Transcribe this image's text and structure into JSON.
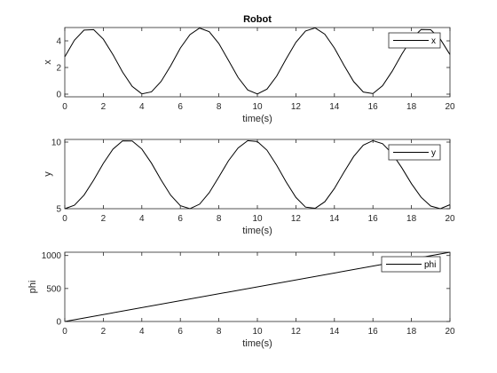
{
  "chart_data": [
    {
      "type": "line",
      "title": "Robot",
      "xlabel": "time(s)",
      "ylabel": "x",
      "xlim": [
        0,
        20
      ],
      "ylim": [
        -0.2,
        5
      ],
      "xticks": [
        0,
        2,
        4,
        6,
        8,
        10,
        12,
        14,
        16,
        18,
        20
      ],
      "yticks": [
        0,
        2,
        4
      ],
      "legend_position": "top-right",
      "grid": false,
      "series": [
        {
          "name": "x",
          "color": "#000000",
          "x": [
            0,
            0.5,
            1,
            1.5,
            2,
            2.5,
            3,
            3.5,
            4,
            4.5,
            5,
            5.5,
            6,
            6.5,
            7,
            7.5,
            8,
            8.5,
            9,
            9.5,
            10,
            10.5,
            11,
            11.5,
            12,
            12.5,
            13,
            13.5,
            14,
            14.5,
            15,
            15.5,
            16,
            16.5,
            17,
            17.5,
            18,
            18.5,
            19,
            19.5,
            20
          ],
          "values": [
            2.8,
            4.05,
            4.81,
            4.84,
            4.13,
            2.97,
            1.66,
            0.58,
            0.02,
            0.17,
            0.95,
            2.13,
            3.46,
            4.47,
            4.96,
            4.69,
            3.8,
            2.53,
            1.25,
            0.31,
            0.01,
            0.38,
            1.35,
            2.66,
            3.89,
            4.74,
            4.97,
            4.5,
            3.46,
            2.16,
            0.94,
            0.16,
            0.04,
            0.63,
            1.72,
            3.0,
            4.14,
            4.85,
            4.83,
            4.13,
            2.97
          ]
        }
      ]
    },
    {
      "type": "line",
      "title": "",
      "xlabel": "time(s)",
      "ylabel": "y",
      "xlim": [
        0,
        20
      ],
      "ylim": [
        5,
        10.2
      ],
      "xticks": [
        0,
        2,
        4,
        6,
        8,
        10,
        12,
        14,
        16,
        18,
        20
      ],
      "yticks": [
        5,
        10
      ],
      "legend_position": "top-right",
      "grid": false,
      "series": [
        {
          "name": "y",
          "color": "#000000",
          "x": [
            0,
            0.5,
            1,
            1.5,
            2,
            2.5,
            3,
            3.5,
            4,
            4.5,
            5,
            5.5,
            6,
            6.5,
            7,
            7.5,
            8,
            8.5,
            9,
            9.5,
            10,
            10.5,
            11,
            11.5,
            12,
            12.5,
            13,
            13.5,
            14,
            14.5,
            15,
            15.5,
            16,
            16.5,
            17,
            17.5,
            18,
            18.5,
            19,
            19.5,
            20
          ],
          "values": [
            5.0,
            5.26,
            6.02,
            7.15,
            8.4,
            9.47,
            10.09,
            10.08,
            9.48,
            8.42,
            7.16,
            6.01,
            5.23,
            5.0,
            5.34,
            6.2,
            7.38,
            8.6,
            9.56,
            10.11,
            10.04,
            9.39,
            8.27,
            6.99,
            5.85,
            5.12,
            5.03,
            5.52,
            6.52,
            7.75,
            8.92,
            9.77,
            10.11,
            9.88,
            9.14,
            8.07,
            6.88,
            5.86,
            5.2,
            5.0,
            5.3
          ]
        }
      ]
    },
    {
      "type": "line",
      "title": "",
      "xlabel": "time(s)",
      "ylabel": "phi",
      "xlim": [
        0,
        20
      ],
      "ylim": [
        0,
        1050
      ],
      "xticks": [
        0,
        2,
        4,
        6,
        8,
        10,
        12,
        14,
        16,
        18,
        20
      ],
      "yticks": [
        0,
        500,
        1000
      ],
      "legend_position": "top-right",
      "grid": false,
      "series": [
        {
          "name": "phi",
          "color": "#000000",
          "x": [
            0,
            20
          ],
          "values": [
            0,
            1050
          ]
        }
      ]
    }
  ]
}
